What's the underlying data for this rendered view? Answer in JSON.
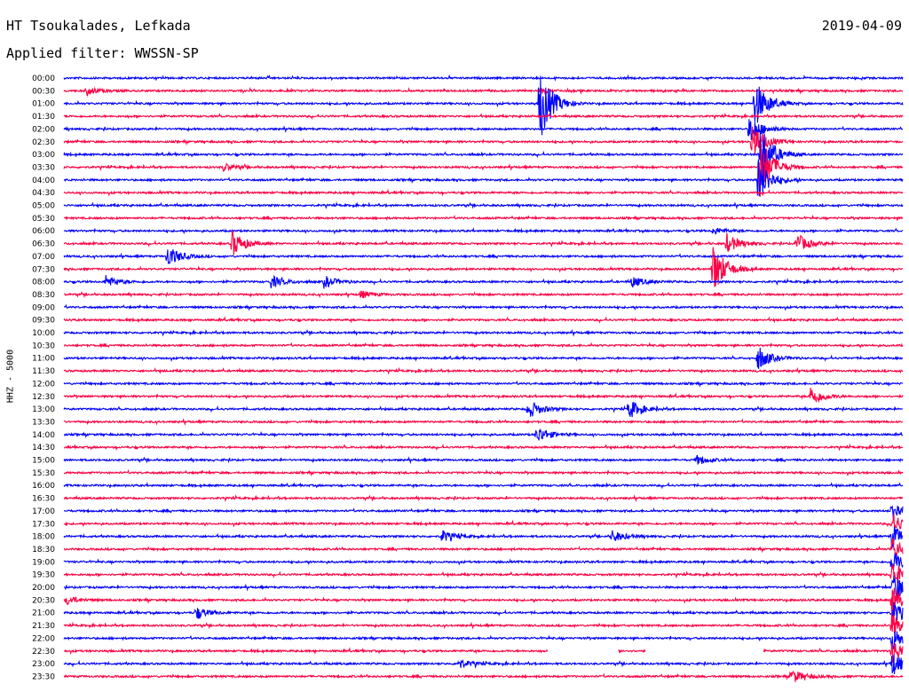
{
  "header": {
    "station": "HT Tsoukalades, Lefkada",
    "date": "2019-04-09",
    "filter": "Applied filter: WWSSN-SP"
  },
  "chart_data": {
    "type": "line",
    "title": "HT Tsoukalades, Lefkada",
    "ylabel": "HHZ - 5000",
    "colors": [
      "#0000ff",
      "#ff0044"
    ],
    "row_labels": [
      "00:00",
      "00:30",
      "01:00",
      "01:30",
      "02:00",
      "02:30",
      "03:00",
      "03:30",
      "04:00",
      "04:30",
      "05:00",
      "05:30",
      "06:00",
      "06:30",
      "07:00",
      "07:30",
      "08:00",
      "08:30",
      "09:00",
      "09:30",
      "10:00",
      "10:30",
      "11:00",
      "11:30",
      "12:00",
      "12:30",
      "13:00",
      "13:30",
      "14:00",
      "14:30",
      "15:00",
      "15:30",
      "16:00",
      "16:30",
      "17:00",
      "17:30",
      "18:00",
      "18:30",
      "19:00",
      "19:30",
      "20:00",
      "20:30",
      "21:00",
      "21:30",
      "22:00",
      "22:30",
      "23:00",
      "23:30"
    ],
    "events": [
      {
        "row": "00:30",
        "time_min": 0.8,
        "amplitude": 0.35
      },
      {
        "row": "00:30",
        "time_min": 17.0,
        "amplitude": 0.2
      },
      {
        "row": "01:00",
        "time_min": 17.0,
        "amplitude": 3.2
      },
      {
        "row": "01:00",
        "time_min": 24.7,
        "amplitude": 2.0
      },
      {
        "row": "02:00",
        "time_min": 24.5,
        "amplitude": 1.2
      },
      {
        "row": "02:30",
        "time_min": 24.6,
        "amplitude": 1.6
      },
      {
        "row": "03:00",
        "time_min": 24.9,
        "amplitude": 2.4
      },
      {
        "row": "03:30",
        "time_min": 24.9,
        "amplitude": 2.6
      },
      {
        "row": "03:30",
        "time_min": 5.7,
        "amplitude": 0.3
      },
      {
        "row": "04:00",
        "time_min": 24.8,
        "amplitude": 2.0
      },
      {
        "row": "06:00",
        "time_min": 23.2,
        "amplitude": 0.3
      },
      {
        "row": "06:30",
        "time_min": 6.0,
        "amplitude": 1.1
      },
      {
        "row": "06:30",
        "time_min": 23.7,
        "amplitude": 0.8
      },
      {
        "row": "06:30",
        "time_min": 26.2,
        "amplitude": 0.8
      },
      {
        "row": "07:00",
        "time_min": 3.7,
        "amplitude": 0.9
      },
      {
        "row": "07:30",
        "time_min": 23.2,
        "amplitude": 2.2
      },
      {
        "row": "08:00",
        "time_min": 1.5,
        "amplitude": 0.5
      },
      {
        "row": "08:00",
        "time_min": 7.4,
        "amplitude": 0.5
      },
      {
        "row": "08:00",
        "time_min": 9.3,
        "amplitude": 0.5
      },
      {
        "row": "08:00",
        "time_min": 20.3,
        "amplitude": 0.45
      },
      {
        "row": "08:30",
        "time_min": 10.6,
        "amplitude": 0.3
      },
      {
        "row": "11:00",
        "time_min": 24.8,
        "amplitude": 1.0
      },
      {
        "row": "12:30",
        "time_min": 26.7,
        "amplitude": 0.8
      },
      {
        "row": "13:00",
        "time_min": 16.6,
        "amplitude": 0.8
      },
      {
        "row": "13:00",
        "time_min": 20.2,
        "amplitude": 0.8
      },
      {
        "row": "14:00",
        "time_min": 16.9,
        "amplitude": 0.7
      },
      {
        "row": "15:00",
        "time_min": 22.6,
        "amplitude": 0.4
      },
      {
        "row": "17:00",
        "time_min": 29.6,
        "amplitude": 0.9
      },
      {
        "row": "17:30",
        "time_min": 29.6,
        "amplitude": 0.9
      },
      {
        "row": "18:00",
        "time_min": 13.5,
        "amplitude": 0.5
      },
      {
        "row": "18:00",
        "time_min": 19.6,
        "amplitude": 0.5
      },
      {
        "row": "18:00",
        "time_min": 29.6,
        "amplitude": 1.0
      },
      {
        "row": "18:30",
        "time_min": 29.6,
        "amplitude": 1.0
      },
      {
        "row": "19:00",
        "time_min": 29.6,
        "amplitude": 1.0
      },
      {
        "row": "19:30",
        "time_min": 29.6,
        "amplitude": 1.1
      },
      {
        "row": "20:00",
        "time_min": 29.65,
        "amplitude": 1.4
      },
      {
        "row": "20:30",
        "time_min": 29.6,
        "amplitude": 1.2
      },
      {
        "row": "20:30",
        "time_min": 0.1,
        "amplitude": 0.35
      },
      {
        "row": "21:00",
        "time_min": 29.6,
        "amplitude": 1.0
      },
      {
        "row": "21:00",
        "time_min": 4.7,
        "amplitude": 0.5
      },
      {
        "row": "21:30",
        "time_min": 29.6,
        "amplitude": 1.0
      },
      {
        "row": "22:00",
        "time_min": 29.6,
        "amplitude": 1.0
      },
      {
        "row": "22:30",
        "time_min": 29.6,
        "amplitude": 1.0
      },
      {
        "row": "23:00",
        "time_min": 29.6,
        "amplitude": 1.0
      },
      {
        "row": "23:00",
        "time_min": 14.1,
        "amplitude": 0.4
      },
      {
        "row": "23:30",
        "time_min": 26.0,
        "amplitude": 0.6
      }
    ],
    "gaps": [
      {
        "row": "22:30",
        "from_min": 17.3,
        "to_min": 19.8
      },
      {
        "row": "22:30",
        "from_min": 20.8,
        "to_min": 25.0
      }
    ]
  }
}
